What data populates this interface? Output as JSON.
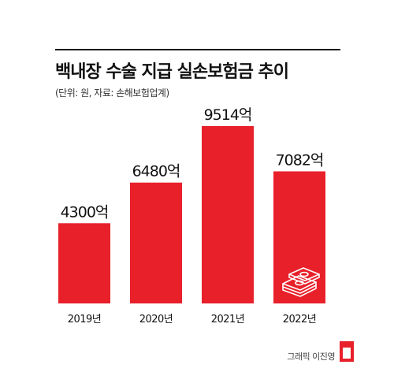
{
  "title": "백내장 수술 지급 실손보험금 추이",
  "subtitle": "(단위: 원, 자료: 손해보험업계)",
  "credit": "그래픽 이진영",
  "icon": "money-stack-icon",
  "colors": {
    "bar": "#e8202a",
    "text": "#111111",
    "rule": "#1a1a1a"
  },
  "chart_data": {
    "type": "bar",
    "categories": [
      "2019년",
      "2020년",
      "2021년",
      "2022년"
    ],
    "values": [
      4300,
      6480,
      9514,
      7082
    ],
    "data_labels": [
      "4300억",
      "6480억",
      "9514억",
      "7082억"
    ],
    "title": "백내장 수술 지급 실손보험금 추이",
    "xlabel": "",
    "ylabel": "",
    "grid": false,
    "legend": "none"
  }
}
